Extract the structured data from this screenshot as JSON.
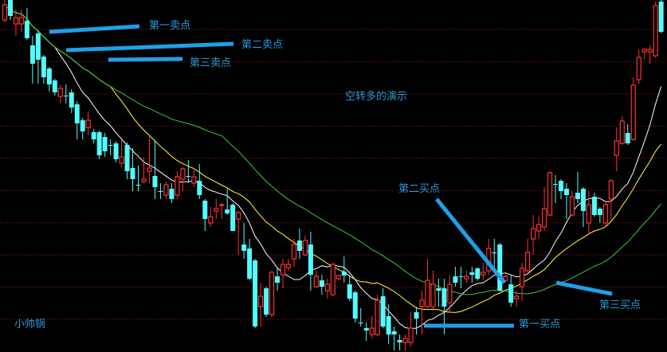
{
  "chart_data": {
    "type": "candlestick",
    "title": "空转多的演示",
    "watermark": "小帅锅",
    "xlabel": "",
    "ylabel": "",
    "ylim": [
      0,
      442
    ],
    "grid": true,
    "colors": {
      "up": "#ff3232",
      "down": "#54fcfc",
      "ma_fast": "#ffffff",
      "ma_mid": "#ffff3c",
      "ma_slow": "#3cc83c",
      "grid": "#8a1a1a",
      "annotation": "#1fa0e8",
      "label": "#2a9ad8"
    },
    "candles_ohlc": [
      [
        417,
        436,
        442,
        414
      ],
      [
        442,
        422,
        442,
        417
      ],
      [
        412,
        420,
        430,
        397
      ],
      [
        412,
        420,
        430,
        402
      ],
      [
        416,
        394,
        432,
        392
      ],
      [
        385,
        362,
        397,
        337
      ],
      [
        400,
        367,
        404,
        337
      ],
      [
        371,
        345,
        373,
        337
      ],
      [
        356,
        336,
        358,
        327
      ],
      [
        341,
        326,
        343,
        322
      ],
      [
        321,
        331,
        336,
        312
      ],
      [
        322,
        322,
        336,
        312
      ],
      [
        326,
        307,
        330,
        300
      ],
      [
        311,
        287,
        315,
        267
      ],
      [
        291,
        277,
        294,
        267
      ],
      [
        282,
        291,
        302,
        272
      ],
      [
        276,
        267,
        280,
        262
      ],
      [
        276,
        247,
        278,
        242
      ],
      [
        270,
        252,
        275,
        245
      ],
      [
        260,
        260,
        267,
        247
      ],
      [
        262,
        242,
        265,
        238
      ],
      [
        237,
        245,
        266,
        232
      ],
      [
        260,
        227,
        263,
        217
      ],
      [
        231,
        217,
        256,
        202
      ],
      [
        210,
        210,
        234,
        202
      ],
      [
        214,
        217,
        244,
        212
      ],
      [
        227,
        231,
        272,
        212
      ],
      [
        221,
        207,
        266,
        192
      ],
      [
        202,
        202,
        212,
        192
      ],
      [
        197,
        210,
        214,
        192
      ],
      [
        205,
        192,
        212,
        187
      ],
      [
        197,
        220,
        227,
        192
      ],
      [
        217,
        230,
        232,
        202
      ],
      [
        221,
        221,
        241,
        212
      ],
      [
        212,
        220,
        231,
        207
      ],
      [
        215,
        197,
        236,
        192
      ],
      [
        190,
        167,
        192,
        152
      ],
      [
        162,
        170,
        182,
        157
      ],
      [
        177,
        180,
        192,
        167
      ],
      [
        184,
        185,
        187,
        167
      ],
      [
        179,
        174,
        205,
        172
      ],
      [
        185,
        152,
        187,
        152
      ],
      [
        167,
        175,
        177,
        122
      ],
      [
        135,
        127,
        162,
        117
      ],
      [
        130,
        92,
        142,
        90
      ],
      [
        115,
        32,
        117,
        30
      ],
      [
        57,
        70,
        87,
        32
      ],
      [
        80,
        47,
        82,
        44
      ],
      [
        47,
        100,
        102,
        44
      ],
      [
        95,
        87,
        106,
        77
      ],
      [
        97,
        110,
        117,
        80
      ],
      [
        106,
        110,
        117,
        102
      ],
      [
        117,
        135,
        142,
        107
      ],
      [
        140,
        127,
        155,
        117
      ],
      [
        122,
        140,
        146,
        120
      ],
      [
        135,
        97,
        151,
        77
      ],
      [
        82,
        95,
        102,
        80
      ],
      [
        90,
        82,
        97,
        72
      ],
      [
        77,
        85,
        92,
        67
      ],
      [
        72,
        110,
        112,
        70
      ],
      [
        92,
        96,
        97,
        90
      ],
      [
        101,
        96,
        120,
        87
      ],
      [
        85,
        67,
        97,
        64
      ],
      [
        75,
        42,
        77,
        37
      ],
      [
        37,
        37,
        55,
        32
      ],
      [
        30,
        27,
        37,
        14
      ],
      [
        22,
        30,
        45,
        17
      ],
      [
        22,
        65,
        72,
        20
      ],
      [
        70,
        32,
        80,
        30
      ],
      [
        45,
        22,
        60,
        10
      ],
      [
        26,
        22,
        32,
        2
      ],
      [
        15,
        12,
        22,
        2
      ],
      [
        12,
        17,
        22,
        2
      ],
      [
        12,
        30,
        50,
        7
      ],
      [
        50,
        42,
        57,
        22
      ],
      [
        57,
        65,
        77,
        22
      ],
      [
        57,
        90,
        117,
        55
      ],
      [
        57,
        85,
        102,
        52
      ],
      [
        80,
        77,
        92,
        57
      ],
      [
        80,
        57,
        92,
        22
      ],
      [
        62,
        85,
        97,
        49
      ],
      [
        95,
        87,
        107,
        82
      ],
      [
        95,
        95,
        107,
        80
      ],
      [
        92,
        95,
        102,
        87
      ],
      [
        100,
        97,
        107,
        87
      ],
      [
        105,
        92,
        106,
        90
      ],
      [
        97,
        100,
        112,
        90
      ],
      [
        102,
        130,
        142,
        97
      ],
      [
        125,
        125,
        142,
        102
      ],
      [
        135,
        77,
        137,
        76
      ],
      [
        90,
        95,
        97,
        87
      ],
      [
        85,
        62,
        97,
        57
      ],
      [
        67,
        70,
        77,
        57
      ],
      [
        82,
        105,
        112,
        64
      ],
      [
        102,
        125,
        142,
        97
      ],
      [
        142,
        155,
        172,
        122
      ],
      [
        152,
        160,
        170,
        142
      ],
      [
        157,
        180,
        207,
        152
      ],
      [
        172,
        225,
        227,
        170
      ],
      [
        211,
        211,
        222,
        187
      ],
      [
        215,
        202,
        217,
        192
      ],
      [
        205,
        197,
        212,
        167
      ],
      [
        172,
        195,
        202,
        170
      ],
      [
        200,
        192,
        226,
        187
      ],
      [
        205,
        177,
        207,
        157
      ],
      [
        162,
        185,
        202,
        147
      ],
      [
        195,
        172,
        200,
        170
      ],
      [
        180,
        172,
        182,
        162
      ],
      [
        162,
        185,
        190,
        157
      ],
      [
        192,
        215,
        217,
        167
      ],
      [
        247,
        265,
        282,
        227
      ],
      [
        262,
        290,
        296,
        260
      ],
      [
        275,
        262,
        286,
        260
      ],
      [
        267,
        335,
        345,
        265
      ],
      [
        342,
        370,
        380,
        337
      ],
      [
        377,
        380,
        382,
        367
      ],
      [
        377,
        380,
        385,
        362
      ],
      [
        372,
        435,
        440,
        370
      ],
      [
        440,
        402,
        442,
        400
      ]
    ],
    "annotations": {
      "sell_1": "第一卖点",
      "sell_2": "第二卖点",
      "sell_3": "第三卖点",
      "buy_1": "第一买点",
      "buy_2": "第二买点",
      "buy_3": "第三买点"
    }
  }
}
